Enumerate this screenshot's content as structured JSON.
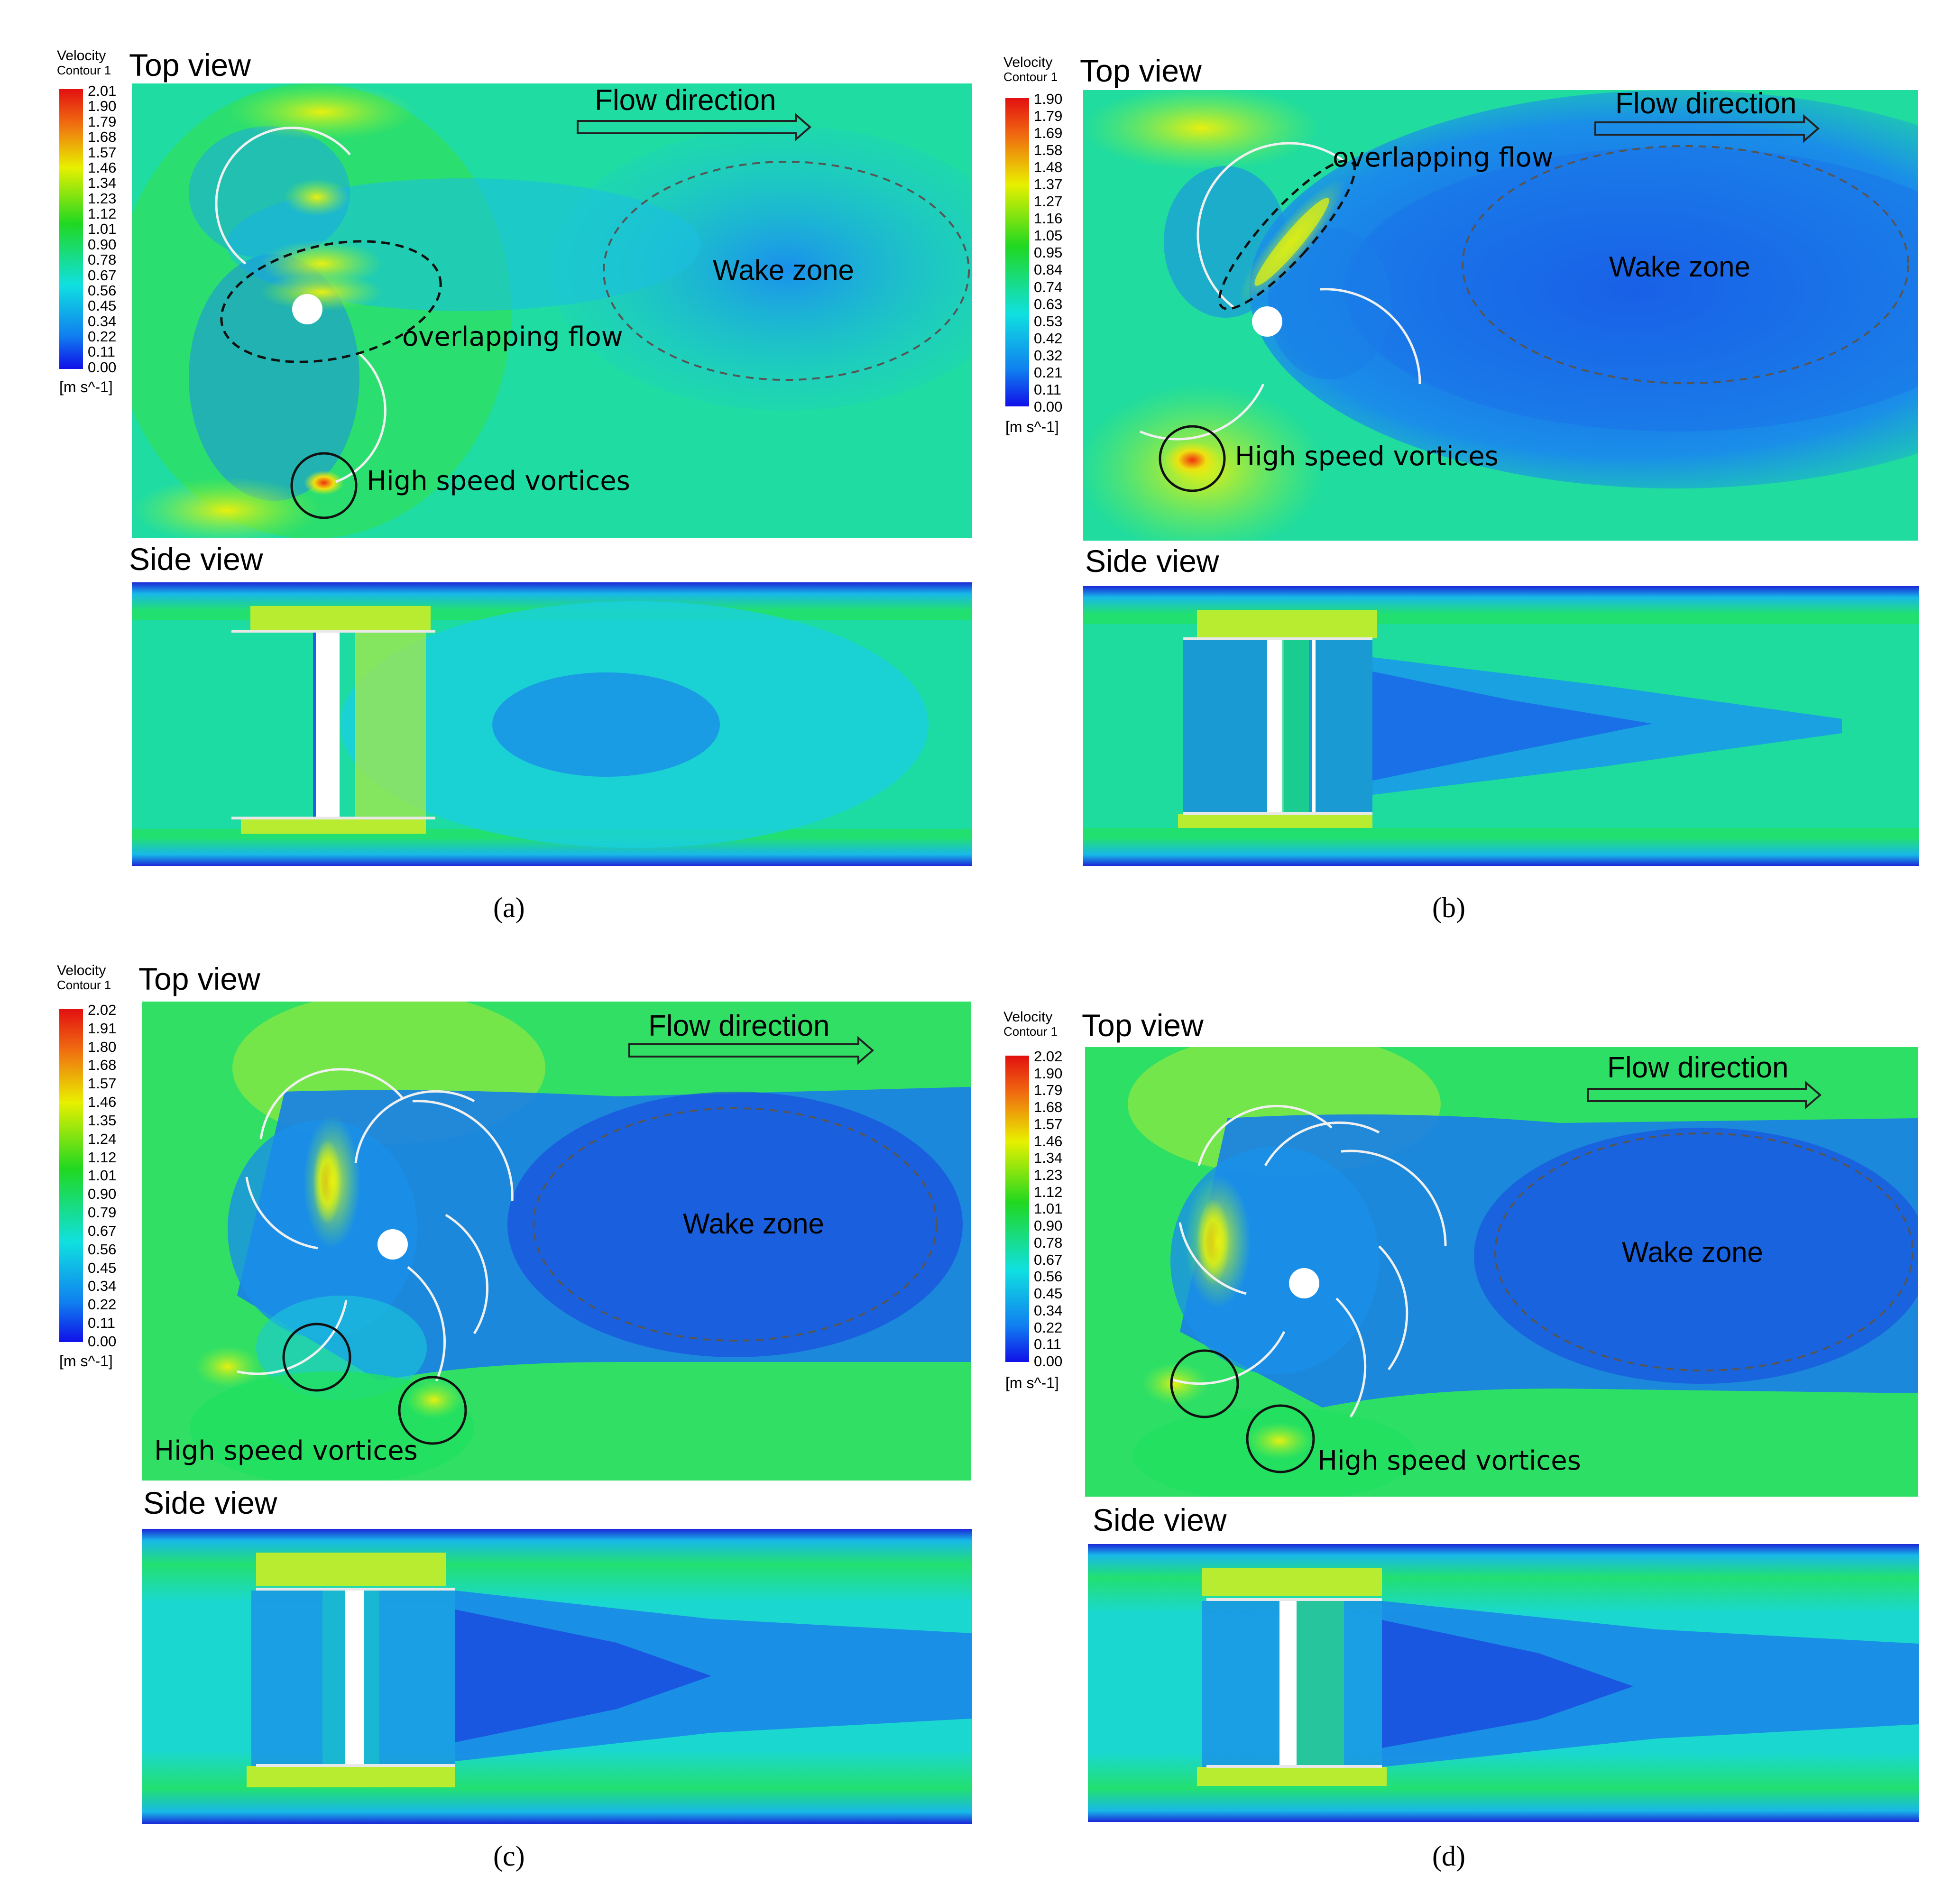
{
  "panels": [
    {
      "id": "a",
      "caption": "(a)",
      "legend_title_1": "Velocity",
      "legend_title_2": "Contour 1",
      "top_view_label": "Top view",
      "side_view_label": "Side view",
      "unit": "[m s^-1]",
      "ticks": [
        "2.01",
        "1.90",
        "1.79",
        "1.68",
        "1.57",
        "1.46",
        "1.34",
        "1.23",
        "1.12",
        "1.01",
        "0.90",
        "0.78",
        "0.67",
        "0.56",
        "0.45",
        "0.34",
        "0.22",
        "0.11",
        "0.00"
      ],
      "flow_direction": "Flow direction",
      "wake_zone": "Wake zone",
      "overlapping_flow": "overlapping flow",
      "high_speed_vortices": "High speed vortices"
    },
    {
      "id": "b",
      "caption": "(b)",
      "legend_title_1": "Velocity",
      "legend_title_2": "Contour 1",
      "top_view_label": "Top view",
      "side_view_label": "Side view",
      "unit": "[m s^-1]",
      "ticks": [
        "1.90",
        "1.79",
        "1.69",
        "1.58",
        "1.48",
        "1.37",
        "1.27",
        "1.16",
        "1.05",
        "0.95",
        "0.84",
        "0.74",
        "0.63",
        "0.53",
        "0.42",
        "0.32",
        "0.21",
        "0.11",
        "0.00"
      ],
      "flow_direction": "Flow direction",
      "wake_zone": "Wake zone",
      "overlapping_flow": "overlapping flow",
      "high_speed_vortices": "High speed vortices"
    },
    {
      "id": "c",
      "caption": "(c)",
      "legend_title_1": "Velocity",
      "legend_title_2": "Contour 1",
      "top_view_label": "Top view",
      "side_view_label": "Side view",
      "unit": "[m s^-1]",
      "ticks": [
        "2.02",
        "1.91",
        "1.80",
        "1.68",
        "1.57",
        "1.46",
        "1.35",
        "1.24",
        "1.12",
        "1.01",
        "0.90",
        "0.79",
        "0.67",
        "0.56",
        "0.45",
        "0.34",
        "0.22",
        "0.11",
        "0.00"
      ],
      "flow_direction": "Flow direction",
      "wake_zone": "Wake zone",
      "high_speed_vortices": "High speed vortices"
    },
    {
      "id": "d",
      "caption": "(d)",
      "legend_title_1": "Velocity",
      "legend_title_2": "Contour 1",
      "top_view_label": "Top view",
      "side_view_label": "Side view",
      "unit": "[m s^-1]",
      "ticks": [
        "2.02",
        "1.90",
        "1.79",
        "1.68",
        "1.57",
        "1.46",
        "1.34",
        "1.23",
        "1.12",
        "1.01",
        "0.90",
        "0.78",
        "0.67",
        "0.56",
        "0.45",
        "0.34",
        "0.22",
        "0.11",
        "0.00"
      ],
      "flow_direction": "Flow direction",
      "wake_zone": "Wake zone",
      "high_speed_vortices": "High speed vortices"
    }
  ],
  "colors": {
    "field_green": "#22e06a",
    "field_cyan": "#19e0d8",
    "field_blue": "#1565e8",
    "deep_blue": "#1a30d8",
    "yellow": "#d8f020",
    "red": "#e83010"
  }
}
